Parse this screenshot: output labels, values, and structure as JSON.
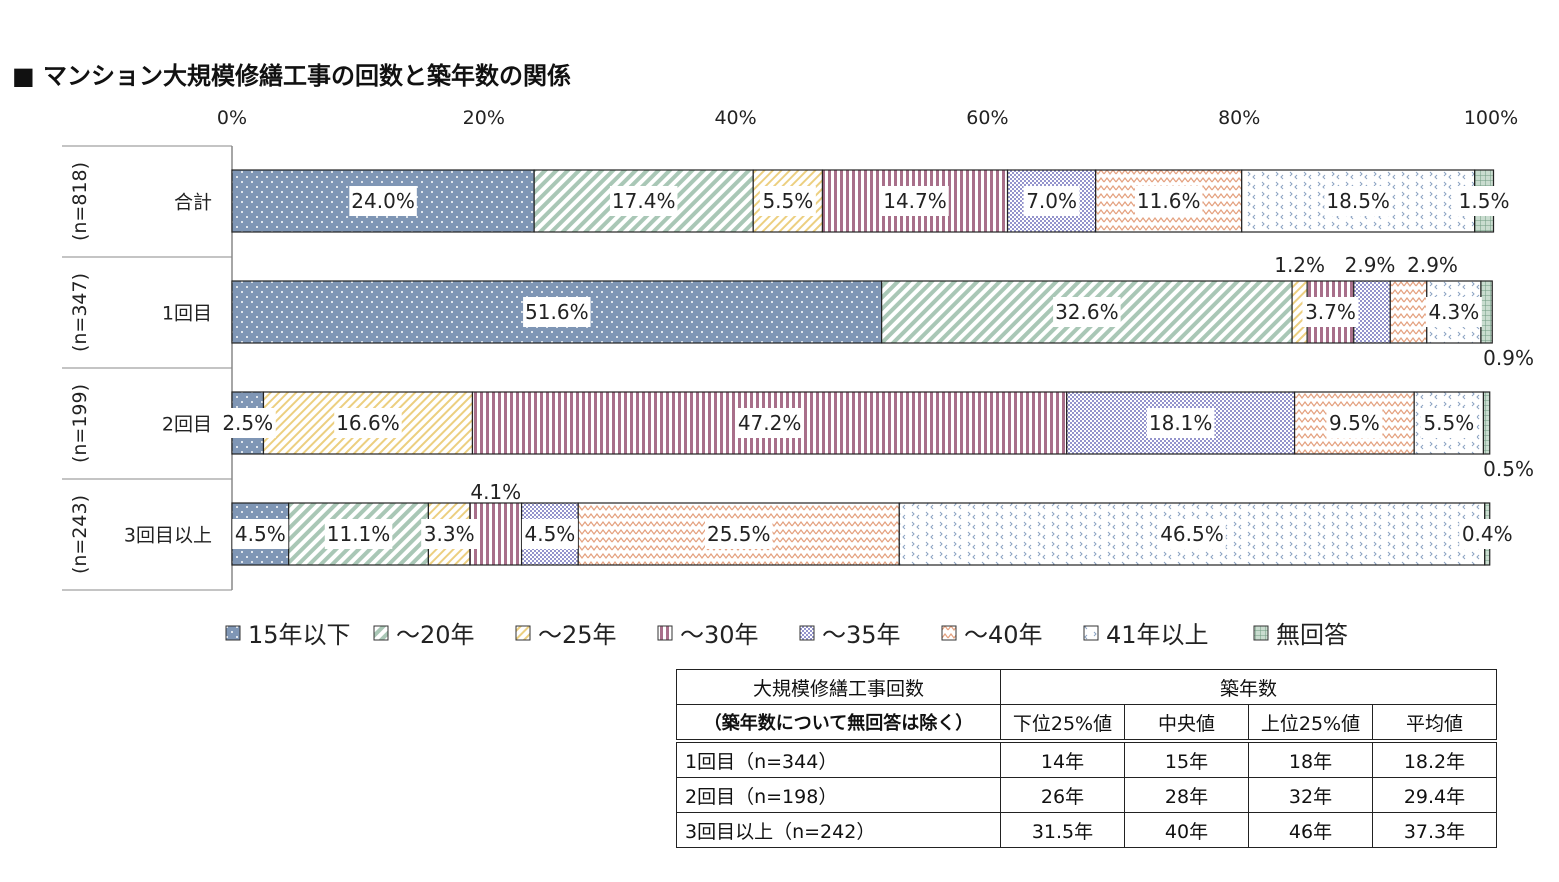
{
  "title": "■ マンション大規模修繕工事の回数と築年数の関係",
  "chart_data": {
    "type": "bar",
    "orientation": "horizontal",
    "stacked": "percent",
    "xlim": [
      0,
      100
    ],
    "x_ticks": [
      "0%",
      "20%",
      "40%",
      "60%",
      "80%",
      "100%"
    ],
    "categories": [
      "合計",
      "1回目",
      "2回目",
      "3回目以上"
    ],
    "sample_sizes": [
      "(n=818)",
      "(n=347)",
      "(n=199)",
      "(n=243)"
    ],
    "legend_position": "bottom",
    "series": [
      {
        "name": "15年以下",
        "color": "#7f96b5",
        "values": [
          24.0,
          51.6,
          2.5,
          4.5
        ]
      },
      {
        "name": "～20年",
        "color": "#a9c7b6",
        "values": [
          17.4,
          32.6,
          0,
          11.1
        ]
      },
      {
        "name": "～25年",
        "color": "#eccf80",
        "values": [
          5.5,
          1.2,
          16.6,
          3.3
        ]
      },
      {
        "name": "～30年",
        "color": "#a86f8a",
        "values": [
          14.7,
          3.7,
          47.2,
          4.1
        ]
      },
      {
        "name": "～35年",
        "color": "#9494cc",
        "values": [
          7.0,
          2.9,
          18.1,
          4.5
        ]
      },
      {
        "name": "～40年",
        "color": "#e4a07e",
        "values": [
          11.6,
          2.9,
          9.5,
          25.5
        ]
      },
      {
        "name": "41年以上",
        "color": "#8aa2c2",
        "values": [
          18.5,
          4.3,
          5.5,
          46.5
        ]
      },
      {
        "name": "無回答",
        "color": "#6f9a80",
        "values": [
          1.5,
          0.9,
          0.5,
          0.4
        ]
      }
    ]
  },
  "table": {
    "header_left_1": "大規模修繕工事回数",
    "header_left_2": "（築年数について無回答は除く）",
    "header_group": "築年数",
    "columns": [
      "下位25%値",
      "中央値",
      "上位25%値",
      "平均値"
    ],
    "rows": [
      {
        "label": "1回目（n=344）",
        "values": [
          "14年",
          "15年",
          "18年",
          "18.2年"
        ]
      },
      {
        "label": "2回目（n=198）",
        "values": [
          "26年",
          "28年",
          "32年",
          "29.4年"
        ]
      },
      {
        "label": "3回目以上（n=242）",
        "values": [
          "31.5年",
          "40年",
          "46年",
          "37.3年"
        ]
      }
    ]
  }
}
